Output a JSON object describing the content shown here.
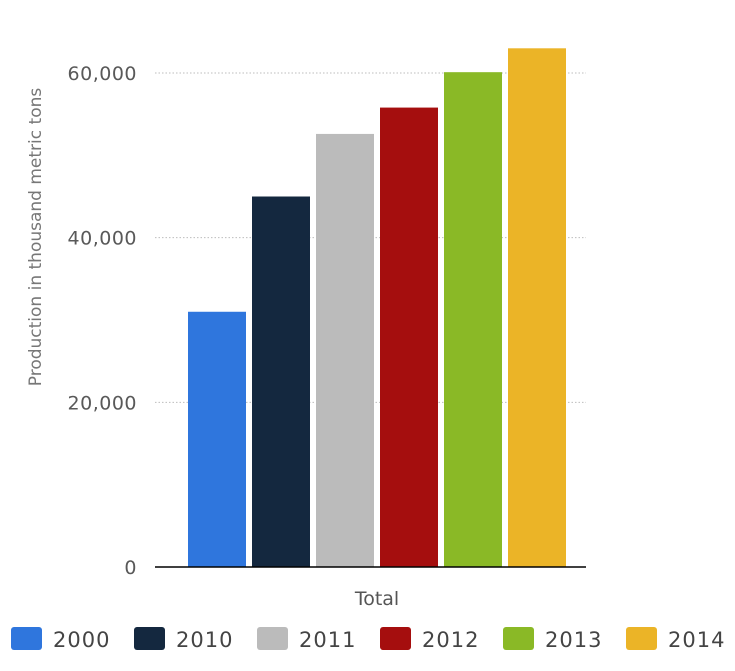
{
  "chart_data": {
    "type": "bar",
    "categories": [
      "Total"
    ],
    "ylabel": "Production in thousand metric tons",
    "xlabel": "",
    "ylim": [
      0,
      60000
    ],
    "yticks": [
      {
        "value": 0,
        "label": "0"
      },
      {
        "value": 20000,
        "label": "20,000"
      },
      {
        "value": 40000,
        "label": "40,000"
      },
      {
        "value": 60000,
        "label": "60,000"
      }
    ],
    "grid": true,
    "legend_position": "bottom",
    "series": [
      {
        "name": "2000",
        "color": "#2f76dd",
        "values": [
          31000
        ]
      },
      {
        "name": "2010",
        "color": "#14283f",
        "values": [
          45000
        ]
      },
      {
        "name": "2011",
        "color": "#bbbbbb",
        "values": [
          52600
        ]
      },
      {
        "name": "2012",
        "color": "#a50e0e",
        "values": [
          55800
        ]
      },
      {
        "name": "2013",
        "color": "#8ab926",
        "values": [
          60100
        ]
      },
      {
        "name": "2014",
        "color": "#ebb427",
        "values": [
          63000
        ]
      }
    ]
  }
}
